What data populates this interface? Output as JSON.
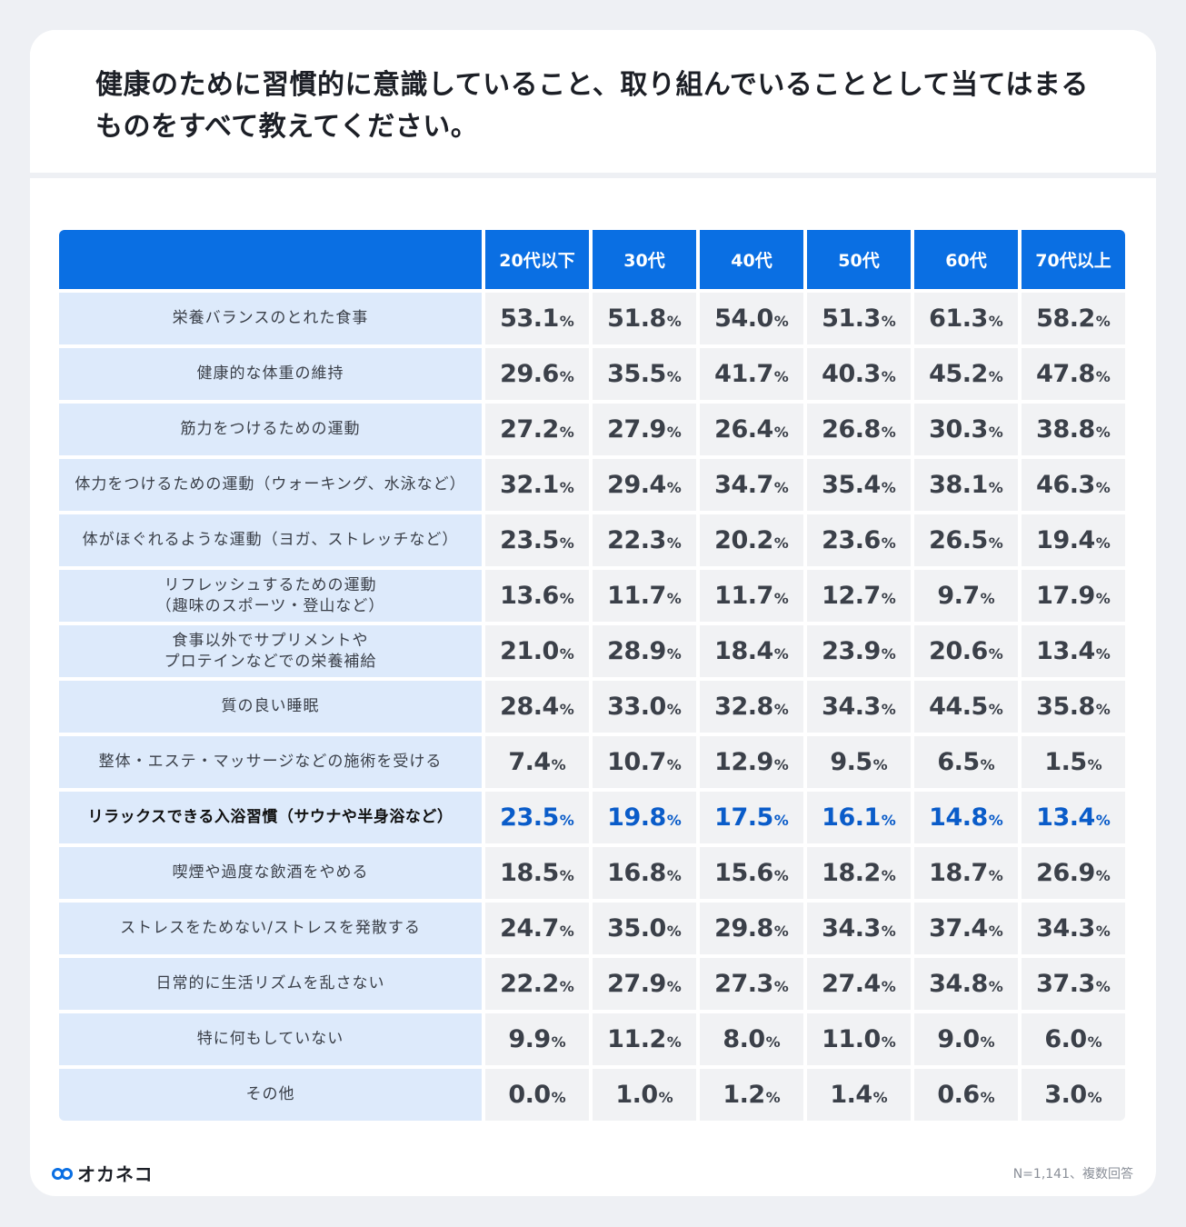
{
  "title": "健康のために習慣的に意識していること、取り組んでいることとして当てはまるものをすべて教えてください。",
  "table": {
    "columns": [
      "20代以下",
      "30代",
      "40代",
      "50代",
      "60代",
      "70代以上"
    ],
    "unit": "%",
    "rows": [
      {
        "label": "栄養バランスのとれた食事",
        "values": [
          "53.1",
          "51.8",
          "54.0",
          "51.3",
          "61.3",
          "58.2"
        ]
      },
      {
        "label": "健康的な体重の維持",
        "values": [
          "29.6",
          "35.5",
          "41.7",
          "40.3",
          "45.2",
          "47.8"
        ]
      },
      {
        "label": "筋力をつけるための運動",
        "values": [
          "27.2",
          "27.9",
          "26.4",
          "26.8",
          "30.3",
          "38.8"
        ]
      },
      {
        "label": "体力をつけるための運動（ウォーキング、水泳など）",
        "values": [
          "32.1",
          "29.4",
          "34.7",
          "35.4",
          "38.1",
          "46.3"
        ]
      },
      {
        "label": "体がほぐれるような運動（ヨガ、ストレッチなど）",
        "values": [
          "23.5",
          "22.3",
          "20.2",
          "23.6",
          "26.5",
          "19.4"
        ]
      },
      {
        "label": "リフレッシュするための運動\n（趣味のスポーツ・登山など）",
        "values": [
          "13.6",
          "11.7",
          "11.7",
          "12.7",
          "9.7",
          "17.9"
        ]
      },
      {
        "label": "食事以外でサプリメントや\nプロテインなどでの栄養補給",
        "values": [
          "21.0",
          "28.9",
          "18.4",
          "23.9",
          "20.6",
          "13.4"
        ]
      },
      {
        "label": "質の良い睡眠",
        "values": [
          "28.4",
          "33.0",
          "32.8",
          "34.3",
          "44.5",
          "35.8"
        ]
      },
      {
        "label": "整体・エステ・マッサージなどの施術を受ける",
        "values": [
          "7.4",
          "10.7",
          "12.9",
          "9.5",
          "6.5",
          "1.5"
        ]
      },
      {
        "label": "リラックスできる入浴習慣（サウナや半身浴など）",
        "values": [
          "23.5",
          "19.8",
          "17.5",
          "16.1",
          "14.8",
          "13.4"
        ],
        "highlight": true
      },
      {
        "label": "喫煙や過度な飲酒をやめる",
        "values": [
          "18.5",
          "16.8",
          "15.6",
          "18.2",
          "18.7",
          "26.9"
        ]
      },
      {
        "label": "ストレスをためない/ストレスを発散する",
        "values": [
          "24.7",
          "35.0",
          "29.8",
          "34.3",
          "37.4",
          "34.3"
        ]
      },
      {
        "label": "日常的に生活リズムを乱さない",
        "values": [
          "22.2",
          "27.9",
          "27.3",
          "27.4",
          "34.8",
          "37.3"
        ]
      },
      {
        "label": "特に何もしていない",
        "values": [
          "9.9",
          "11.2",
          "8.0",
          "11.0",
          "9.0",
          "6.0"
        ]
      },
      {
        "label": "その他",
        "values": [
          "0.0",
          "1.0",
          "1.2",
          "1.4",
          "0.6",
          "3.0"
        ]
      }
    ]
  },
  "brand": {
    "name": "オカネコ",
    "icon": "glasses-logo-icon"
  },
  "footnote": "N=1,141、複数回答",
  "colors": {
    "header_bg": "#0a6fe3",
    "label_bg": "#ddeafb",
    "value_bg": "#f1f2f4",
    "highlight_text": "#0a5cc9",
    "page_bg": "#eef0f4"
  }
}
